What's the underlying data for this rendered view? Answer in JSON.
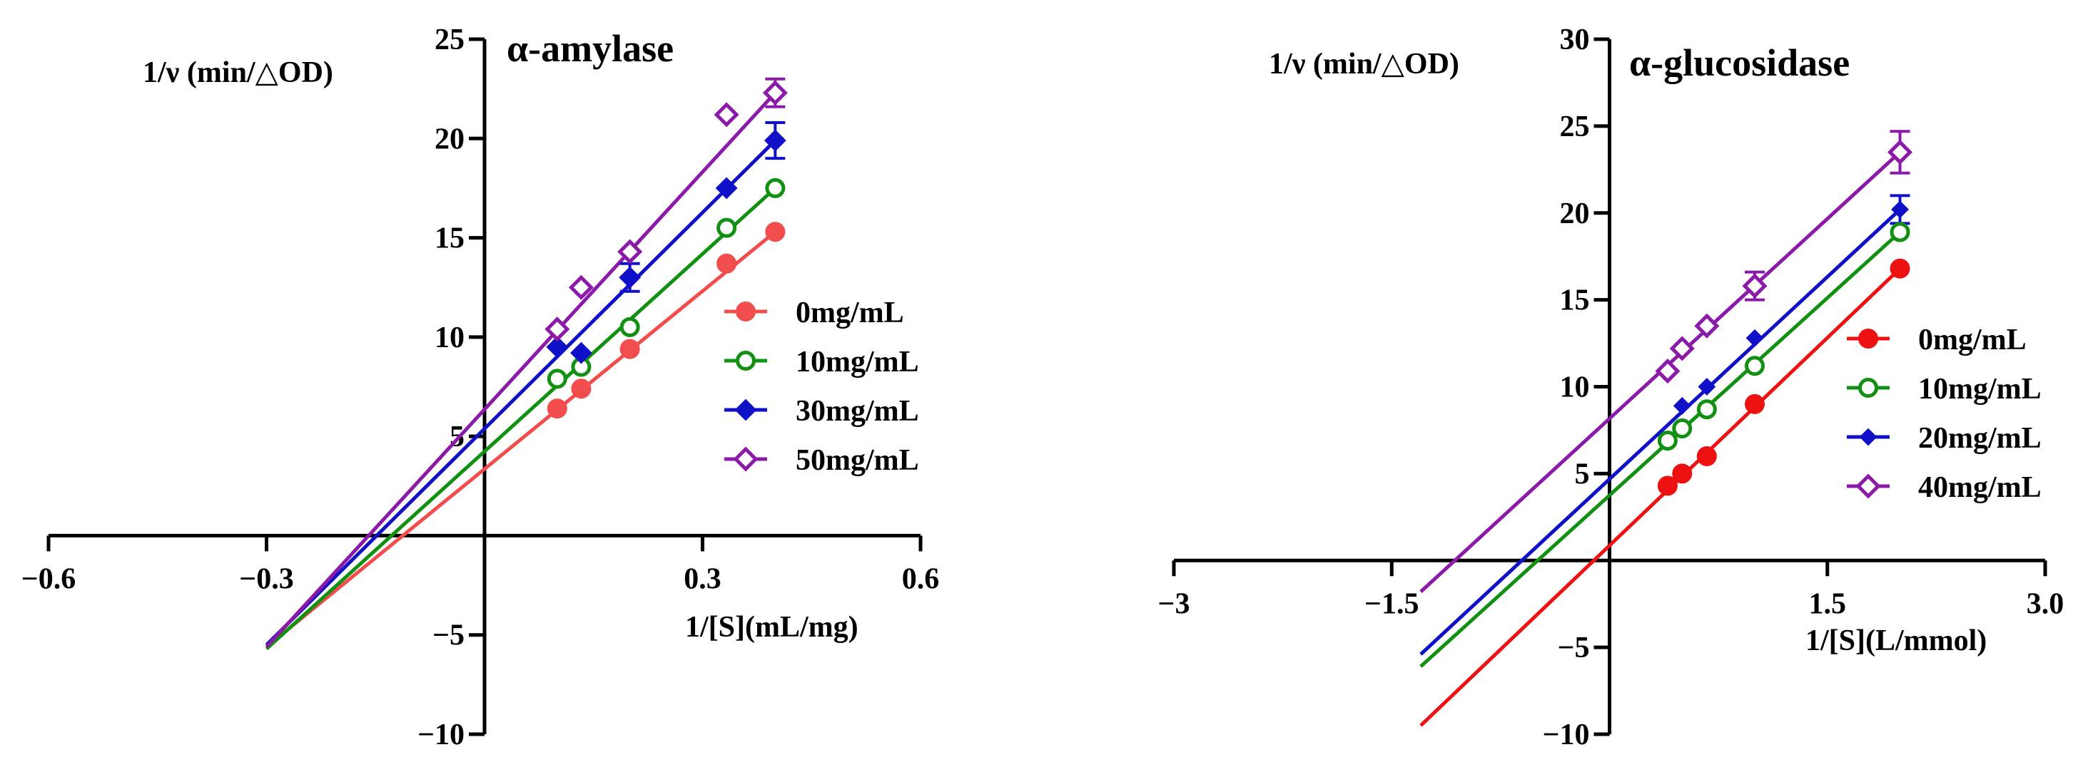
{
  "chart_data": [
    {
      "type": "scatter",
      "title": "α-amylase",
      "ylabel": "1/ν (min/△OD)",
      "xlabel": "1/[S](mL/mg)",
      "xlim": [
        -0.6,
        0.6
      ],
      "ylim": [
        -10,
        25
      ],
      "xticks": [
        -0.6,
        -0.3,
        0.3,
        0.6
      ],
      "xtick_labels": [
        "−0.6",
        "−0.3",
        "0.3",
        "0.6"
      ],
      "yticks": [
        -10,
        -5,
        5,
        10,
        15,
        20,
        25
      ],
      "ytick_labels": [
        "−10",
        "−5",
        "5",
        "10",
        "15",
        "20",
        "25"
      ],
      "legend_position": "right",
      "series": [
        {
          "name": "0mg/mL",
          "color": "#f24d4d",
          "marker": "filled-circle",
          "x": [
            0.1,
            0.133,
            0.2,
            0.333,
            0.4
          ],
          "y": [
            6.4,
            7.4,
            9.4,
            13.7,
            15.3
          ],
          "err": [
            0,
            0,
            0,
            0,
            0
          ],
          "line": [
            [
              -0.3,
              -5.6
            ],
            [
              0.4,
              15.3
            ]
          ]
        },
        {
          "name": "10mg/mL",
          "color": "#119011",
          "marker": "open-circle",
          "x": [
            0.1,
            0.133,
            0.2,
            0.333,
            0.4
          ],
          "y": [
            7.9,
            8.5,
            10.5,
            15.5,
            17.5
          ],
          "err": [
            0,
            0,
            0,
            0,
            0
          ],
          "line": [
            [
              -0.3,
              -5.7
            ],
            [
              0.4,
              17.5
            ]
          ]
        },
        {
          "name": "30mg/mL",
          "color": "#1010c8",
          "marker": "filled-diamond",
          "x": [
            0.1,
            0.133,
            0.2,
            0.333,
            0.4
          ],
          "y": [
            9.5,
            9.2,
            13.0,
            17.5,
            19.9
          ],
          "err": [
            0,
            0,
            0.7,
            0,
            0.9
          ],
          "line": [
            [
              -0.3,
              -5.5
            ],
            [
              0.4,
              19.9
            ]
          ]
        },
        {
          "name": "50mg/mL",
          "color": "#8c1aa8",
          "marker": "open-diamond",
          "x": [
            0.1,
            0.133,
            0.2,
            0.333,
            0.4
          ],
          "y": [
            10.4,
            12.5,
            14.3,
            21.2,
            22.3
          ],
          "err": [
            0,
            0,
            0,
            0,
            0.7
          ],
          "line": [
            [
              -0.3,
              -5.6
            ],
            [
              0.4,
              22.3
            ]
          ]
        }
      ]
    },
    {
      "type": "scatter",
      "title": "α-glucosidase",
      "ylabel": "1/ν (min/△OD)",
      "xlabel": "1/[S](L/mmol)",
      "xlim": [
        -3,
        3
      ],
      "ylim": [
        -10,
        30
      ],
      "xticks": [
        -3,
        -1.5,
        1.5,
        3.0
      ],
      "xtick_labels": [
        "−3",
        "−1.5",
        "1.5",
        "3.0"
      ],
      "yticks": [
        -10,
        -5,
        5,
        10,
        15,
        20,
        25,
        30
      ],
      "ytick_labels": [
        "−10",
        "−5",
        "5",
        "10",
        "15",
        "20",
        "25",
        "30"
      ],
      "legend_position": "right",
      "series": [
        {
          "name": "0mg/mL",
          "color": "#ee1111",
          "marker": "filled-circle",
          "x": [
            0.4,
            0.5,
            0.67,
            1.0,
            2.0
          ],
          "y": [
            4.3,
            5.0,
            6.0,
            9.0,
            16.8
          ],
          "err": [
            0,
            0,
            0,
            0,
            0
          ],
          "line": [
            [
              -1.3,
              -9.5
            ],
            [
              2.0,
              16.8
            ]
          ]
        },
        {
          "name": "10mg/mL",
          "color": "#119011",
          "marker": "open-circle",
          "x": [
            0.4,
            0.5,
            0.67,
            1.0,
            2.0
          ],
          "y": [
            6.9,
            7.6,
            8.7,
            11.2,
            18.9
          ],
          "err": [
            0,
            0,
            0,
            0,
            0
          ],
          "line": [
            [
              -1.3,
              -6.1
            ],
            [
              2.0,
              18.9
            ]
          ]
        },
        {
          "name": "20mg/mL",
          "color": "#1010c8",
          "marker": "filled-diamond",
          "x": [
            0.5,
            0.67,
            1.0,
            2.0
          ],
          "y": [
            8.9,
            10.0,
            12.8,
            20.2
          ],
          "err": [
            0,
            0,
            0,
            0.8
          ],
          "line": [
            [
              -1.3,
              -5.4
            ],
            [
              2.0,
              20.2
            ]
          ]
        },
        {
          "name": "40mg/mL",
          "color": "#8c1aa8",
          "marker": "open-diamond",
          "x": [
            0.4,
            0.5,
            0.67,
            1.0,
            2.0
          ],
          "y": [
            10.9,
            12.2,
            13.5,
            15.8,
            23.5
          ],
          "err": [
            0,
            0,
            0,
            0.8,
            1.2
          ],
          "line": [
            [
              -1.3,
              -1.8
            ],
            [
              2.0,
              23.5
            ]
          ]
        }
      ]
    }
  ]
}
